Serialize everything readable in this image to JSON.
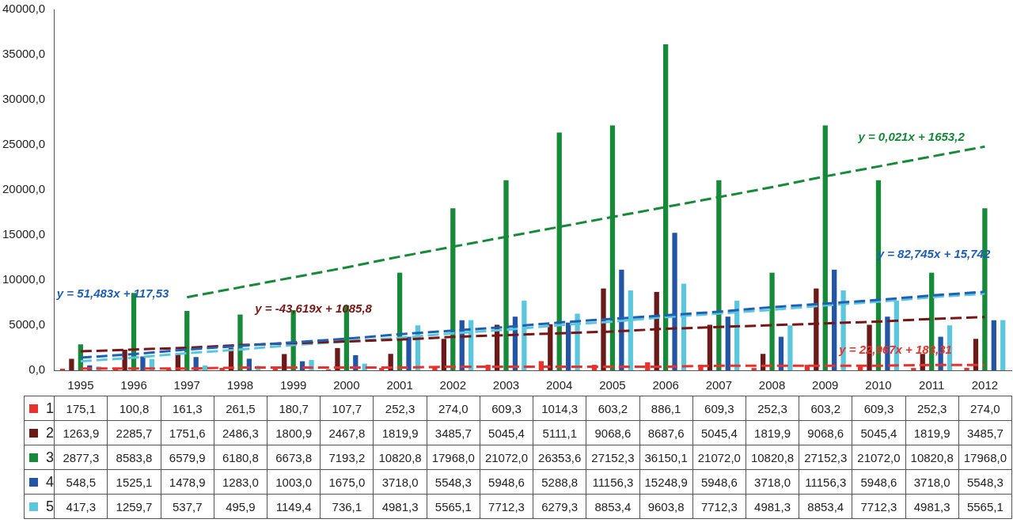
{
  "chart_data": {
    "type": "bar",
    "categories": [
      "1995",
      "1996",
      "1997",
      "1998",
      "1999",
      "2000",
      "2001",
      "2002",
      "2003",
      "2004",
      "2005",
      "2006",
      "2007",
      "2008",
      "2009",
      "2010",
      "2011",
      "2012"
    ],
    "series": [
      {
        "name": "1",
        "color": "#e8322d",
        "values": [
          175.1,
          100.8,
          161.3,
          261.5,
          180.7,
          107.7,
          252.3,
          274.0,
          609.3,
          1014.3,
          603.2,
          886.1,
          609.3,
          252.3,
          603.2,
          609.3,
          252.3,
          274.0
        ],
        "value_labels": [
          "175,1",
          "100,8",
          "161,3",
          "261,5",
          "180,7",
          "107,7",
          "252,3",
          "274,0",
          "609,3",
          "1014,3",
          "603,2",
          "886,1",
          "609,3",
          "252,3",
          "603,2",
          "609,3",
          "252,3",
          "274,0"
        ]
      },
      {
        "name": "2",
        "color": "#6b1a1a",
        "values": [
          1263.9,
          2285.7,
          1751.6,
          2486.3,
          1800.9,
          2467.8,
          1819.9,
          3485.7,
          5045.4,
          5111.1,
          9068.6,
          8687.6,
          5045.4,
          1819.9,
          9068.6,
          5045.4,
          1819.9,
          3485.7
        ],
        "value_labels": [
          "1263,9",
          "2285,7",
          "1751,6",
          "2486,3",
          "1800,9",
          "2467,8",
          "1819,9",
          "3485,7",
          "5045,4",
          "5111,1",
          "9068,6",
          "8687,6",
          "5045,4",
          "1819,9",
          "9068,6",
          "5045,4",
          "1819,9",
          "3485,7"
        ]
      },
      {
        "name": "3",
        "color": "#178a3a",
        "values": [
          2877.3,
          8583.8,
          6579.9,
          6180.8,
          6673.8,
          7193.2,
          10820.8,
          17968.0,
          21072.0,
          26353.6,
          27152.3,
          36150.1,
          21072.0,
          10820.8,
          27152.3,
          21072.0,
          10820.8,
          17968.0
        ],
        "value_labels": [
          "2877,3",
          "8583,8",
          "6579,9",
          "6180,8",
          "6673,8",
          "7193,2",
          "10820,8",
          "17968,0",
          "21072,0",
          "26353,6",
          "27152,3",
          "36150,1",
          "21072,0",
          "10820,8",
          "27152,3",
          "21072,0",
          "10820,8",
          "17968,0"
        ]
      },
      {
        "name": "4",
        "color": "#2454a4",
        "values": [
          548.5,
          1525.1,
          1478.9,
          1283.0,
          1003.0,
          1675.0,
          3718.0,
          5548.3,
          5948.6,
          5288.8,
          11156.3,
          15248.9,
          5948.6,
          3718.0,
          11156.3,
          5948.6,
          3718.0,
          5548.3
        ],
        "value_labels": [
          "548,5",
          "1525,1",
          "1478,9",
          "1283,0",
          "1003,0",
          "1675,0",
          "3718,0",
          "5548,3",
          "5948,6",
          "5288,8",
          "11156,3",
          "15248,9",
          "5948,6",
          "3718,0",
          "11156,3",
          "5948,6",
          "3718,0",
          "5548,3"
        ]
      },
      {
        "name": "5",
        "color": "#5cc6dc",
        "values": [
          417.3,
          1259.7,
          537.7,
          495.9,
          1149.4,
          736.1,
          4981.3,
          5565.1,
          7712.3,
          6279.3,
          8853.4,
          9603.8,
          7712.3,
          4981.3,
          8853.4,
          7712.3,
          4981.3,
          5565.1
        ],
        "value_labels": [
          "417,3",
          "1259,7",
          "537,7",
          "495,9",
          "1149,4",
          "736,1",
          "4981,3",
          "5565,1",
          "7712,3",
          "6279,3",
          "8853,4",
          "9603,8",
          "7712,3",
          "4981,3",
          "8853,4",
          "7712,3",
          "4981,3",
          "5565,1"
        ]
      },
      {
        "type": "line",
        "color": "#1f5fb4",
        "line_style": "dashed",
        "values": [
          1400,
          1800,
          2300,
          2700,
          3100,
          3500,
          4000,
          4400,
          4800,
          5300,
          5700,
          6100,
          6500,
          7000,
          7400,
          7800,
          8300,
          8700
        ]
      },
      {
        "type": "line",
        "color": "#7a1515",
        "line_style": "dashed",
        "values": [
          2100,
          2300,
          2500,
          2800,
          3000,
          3200,
          3400,
          3700,
          3900,
          4100,
          4300,
          4600,
          4800,
          5000,
          5200,
          5400,
          5700,
          5900
        ]
      },
      {
        "type": "line",
        "color": "#178a3a",
        "line_style": "dashed",
        "values": [
          null,
          null,
          8100,
          9200,
          10300,
          11400,
          12600,
          13700,
          14800,
          15900,
          17000,
          18100,
          19200,
          20300,
          21500,
          22600,
          23700,
          24800
        ]
      },
      {
        "type": "line",
        "color": "#e8322d",
        "line_style": "dashed",
        "values": [
          200,
          200,
          200,
          300,
          300,
          300,
          300,
          400,
          400,
          400,
          400,
          400,
          500,
          500,
          500,
          500,
          600,
          600
        ]
      },
      {
        "type": "line",
        "color": "#5cc6dc",
        "line_style": "dashed",
        "values": [
          1000,
          1400,
          1900,
          2300,
          2800,
          3200,
          3600,
          4100,
          4500,
          5000,
          5400,
          5900,
          6300,
          6700,
          7200,
          7600,
          8100,
          8500
        ]
      }
    ],
    "annotations": [
      "y = 51,483x + 117,53",
      "y = -43,619x + 1085,8",
      "y = 0,021x + 1653,2",
      "y = 82,745x + 15,742",
      "y = 22,967x + 183,31"
    ],
    "ylim": [
      0,
      40000
    ],
    "yticks": [
      {
        "value": 0,
        "label": "0,0"
      },
      {
        "value": 5000,
        "label": "5000,0"
      },
      {
        "value": 10000,
        "label": "10000,0"
      },
      {
        "value": 15000,
        "label": "15000,0"
      },
      {
        "value": 20000,
        "label": "20000,0"
      },
      {
        "value": 25000,
        "label": "25000,0"
      },
      {
        "value": 30000,
        "label": "30000,0"
      },
      {
        "value": 35000,
        "label": "35000,0"
      },
      {
        "value": 40000,
        "label": "40000,0"
      }
    ],
    "grid": false,
    "legend": "bottom",
    "marker": "none"
  }
}
